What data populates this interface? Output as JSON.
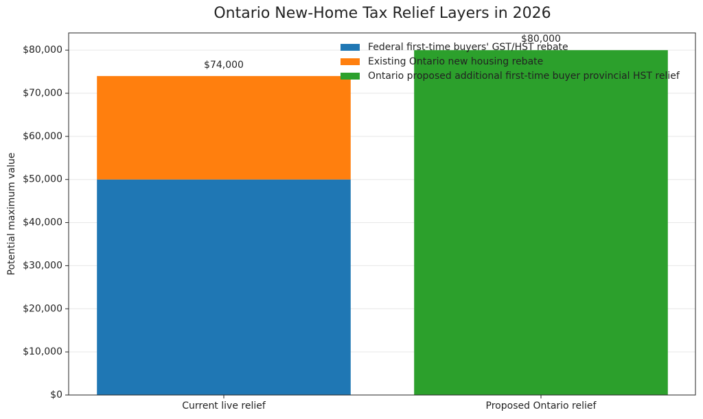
{
  "chart_data": {
    "type": "stacked_bar",
    "title": "Ontario New-Home Tax Relief Layers in 2026",
    "y_label": "Potential maximum value",
    "categories": [
      "Current live relief",
      "Proposed Ontario relief"
    ],
    "series": [
      {
        "name": "Federal first-time buyers' GST/HST rebate",
        "color": "#1f77b4",
        "values": [
          50000,
          null
        ]
      },
      {
        "name": "Existing Ontario new housing rebate",
        "color": "#ff7f0e",
        "values": [
          24000,
          null
        ]
      },
      {
        "name": "Ontario proposed additional first-time buyer provincial HST relief",
        "color": "#2ca02c",
        "values": [
          null,
          80000
        ]
      }
    ],
    "totals": [
      74000,
      80000
    ],
    "total_labels": [
      "$74,000",
      "$80,000"
    ],
    "ylim": [
      0,
      84000
    ],
    "yticks": [
      {
        "value": 0,
        "label": "$0"
      },
      {
        "value": 10000,
        "label": "$10,000"
      },
      {
        "value": 20000,
        "label": "$20,000"
      },
      {
        "value": 30000,
        "label": "$30,000"
      },
      {
        "value": 40000,
        "label": "$40,000"
      },
      {
        "value": 50000,
        "label": "$50,000"
      },
      {
        "value": 60000,
        "label": "$60,000"
      },
      {
        "value": 70000,
        "label": "$70,000"
      },
      {
        "value": 80000,
        "label": "$80,000"
      }
    ],
    "grid": true,
    "legend": "upper right"
  }
}
